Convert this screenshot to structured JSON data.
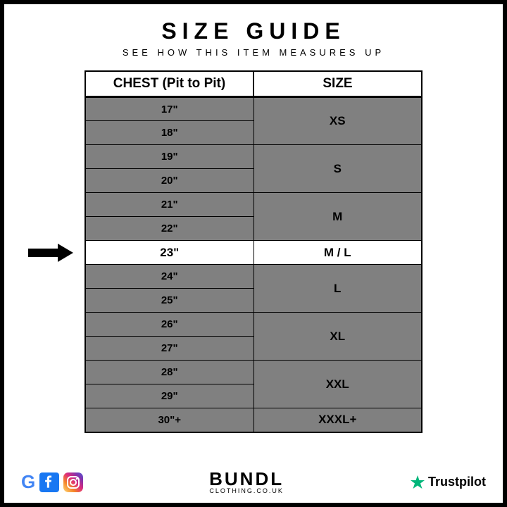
{
  "header": {
    "title": "SIZE GUIDE",
    "subtitle": "SEE HOW THIS ITEM MEASURES UP"
  },
  "table": {
    "col1_header": "CHEST (Pit to Pit)",
    "col2_header": "SIZE",
    "highlight_index": 6,
    "highlight_bg": "#ffffff",
    "normal_bg": "#808080",
    "border_color": "#000000",
    "rows": [
      {
        "chest": "17\"",
        "size": "XS",
        "span": 2
      },
      {
        "chest": "18\""
      },
      {
        "chest": "19\"",
        "size": "S",
        "span": 2
      },
      {
        "chest": "20\""
      },
      {
        "chest": "21\"",
        "size": "M",
        "span": 2
      },
      {
        "chest": "22\""
      },
      {
        "chest": "23\"",
        "size": "M / L",
        "span": 1
      },
      {
        "chest": "24\"",
        "size": "L",
        "span": 2
      },
      {
        "chest": "25\""
      },
      {
        "chest": "26\"",
        "size": "XL",
        "span": 2
      },
      {
        "chest": "27\""
      },
      {
        "chest": "28\"",
        "size": "XXL",
        "span": 2
      },
      {
        "chest": "29\""
      },
      {
        "chest": "30\"+",
        "size": "XXXL+",
        "span": 1
      }
    ]
  },
  "footer": {
    "brand_top": "BUNDL",
    "brand_bottom": "CLOTHING.CO.UK",
    "trustpilot": "Trustpilot",
    "trustpilot_star_color": "#00B67A",
    "facebook_color": "#1877F2",
    "instagram_colors": [
      "#FEDA77",
      "#F58529",
      "#DD2A7B",
      "#8134AF",
      "#515BD4"
    ]
  }
}
